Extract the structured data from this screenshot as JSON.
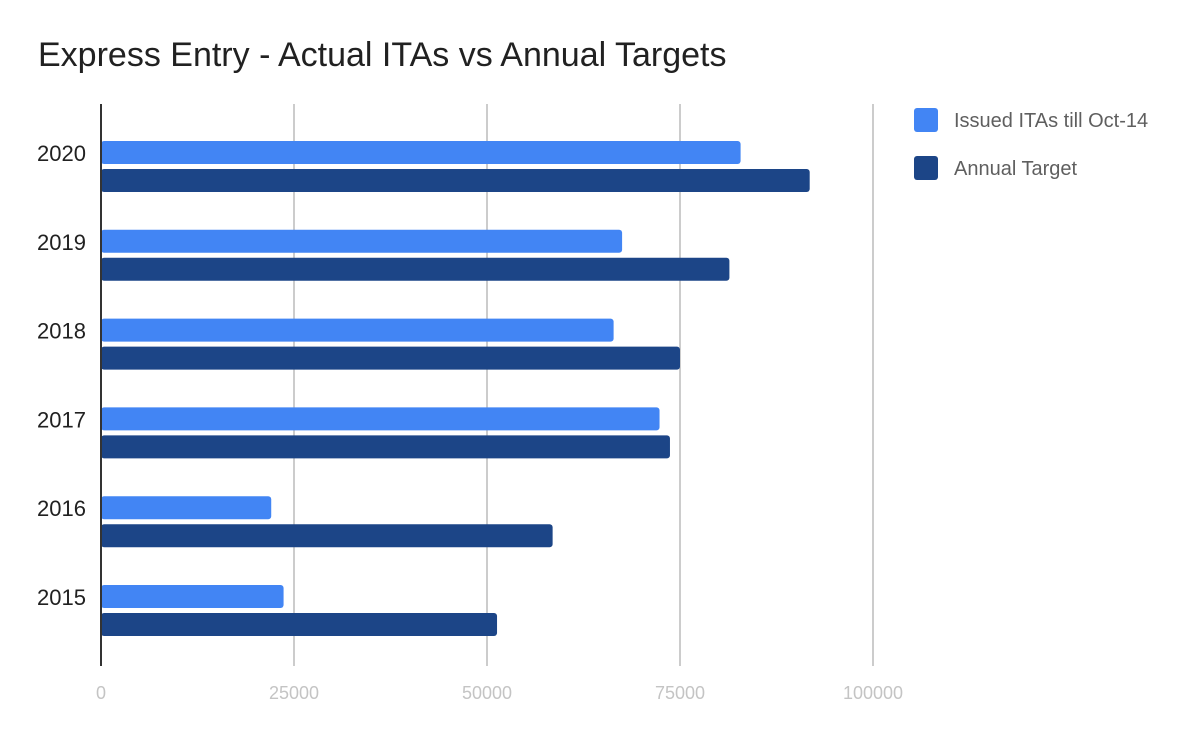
{
  "chart_data": {
    "type": "bar",
    "orientation": "horizontal",
    "title": "Express Entry - Actual ITAs vs Annual Targets",
    "xlabel": "",
    "ylabel": "",
    "categories": [
      "2020",
      "2019",
      "2018",
      "2017",
      "2016",
      "2015"
    ],
    "series": [
      {
        "name": "Issued ITAs till Oct-14",
        "color": "#4285f4",
        "values": [
          82850,
          67500,
          66400,
          72350,
          22050,
          23650
        ]
      },
      {
        "name": "Annual Target",
        "color": "#1c4587",
        "values": [
          91800,
          81400,
          75000,
          73700,
          58500,
          51300
        ]
      }
    ],
    "xlim": [
      0,
      100000
    ],
    "x_ticks": [
      "0",
      "25000",
      "50000",
      "75000",
      "100000"
    ],
    "grid": true,
    "legend_position": "right"
  }
}
